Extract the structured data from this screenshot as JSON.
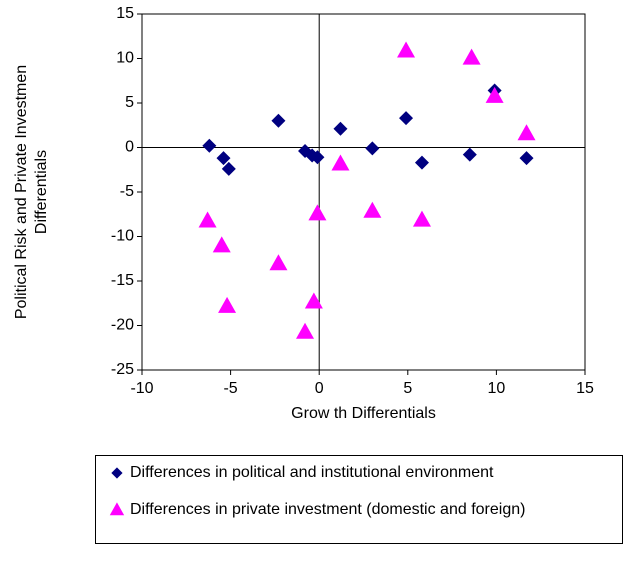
{
  "chart_data": {
    "type": "scatter",
    "xlabel": "Grow th Differentials",
    "ylabel": [
      "Political Risk and Private Investmen",
      "Differentials"
    ],
    "xlim": [
      -10,
      15
    ],
    "xticks": [
      -10,
      -5,
      0,
      5,
      10,
      15
    ],
    "ylim": [
      -25,
      15
    ],
    "yticks": [
      -25,
      -20,
      -15,
      -10,
      -5,
      0,
      5,
      10,
      15
    ],
    "series": [
      {
        "name": "Differences in political and institutional environment",
        "color": "#000080",
        "marker": "diamond",
        "x": [
          -6.2,
          -5.4,
          -5.1,
          -2.3,
          -0.8,
          -0.4,
          -0.1,
          1.2,
          3.0,
          4.9,
          5.8,
          8.5,
          9.9,
          11.7
        ],
        "values": [
          0.2,
          -1.2,
          -2.4,
          3.0,
          -0.4,
          -0.9,
          -1.1,
          2.1,
          -0.1,
          3.3,
          -1.7,
          -0.8,
          6.4,
          -1.2
        ]
      },
      {
        "name": "Differences in private investment (domestic and foreign)",
        "color": "#ff00ff",
        "marker": "triangle",
        "x": [
          -6.3,
          -5.5,
          -5.2,
          -2.3,
          -0.8,
          -0.3,
          -0.1,
          1.2,
          3.0,
          4.9,
          5.8,
          8.6,
          9.9,
          11.7
        ],
        "values": [
          -8.2,
          -11.0,
          -17.8,
          -13.0,
          -20.7,
          -17.3,
          -7.4,
          -1.8,
          -7.1,
          10.9,
          -8.1,
          10.1,
          5.8,
          1.6
        ]
      }
    ]
  }
}
